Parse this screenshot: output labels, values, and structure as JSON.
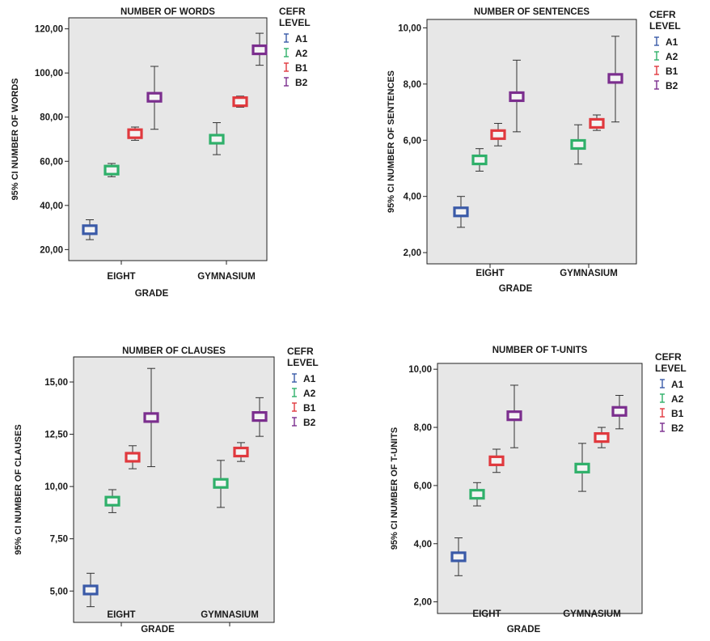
{
  "legend": {
    "title_line1": "CEFR",
    "title_line2": "LEVEL",
    "entries": [
      {
        "label": "A1",
        "color": "#3a5aa8"
      },
      {
        "label": "A2",
        "color": "#2fb06a"
      },
      {
        "label": "B1",
        "color": "#e0393e"
      },
      {
        "label": "B2",
        "color": "#7b2e8e"
      }
    ]
  },
  "chart_data": [
    {
      "type": "errorbar",
      "title": "NUMBER OF WORDS",
      "xlabel": "GRADE",
      "ylabel": "95% CI NUMBER OF WORDS",
      "categories": [
        "EIGHT",
        "GYMNASIUM"
      ],
      "ylim": [
        15,
        125
      ],
      "yticks": [
        "20,00",
        "40,00",
        "60,00",
        "80,00",
        "100,00",
        "120,00"
      ],
      "ytick_values": [
        20,
        40,
        60,
        80,
        100,
        120
      ],
      "series": [
        {
          "name": "A1",
          "means": [
            29,
            null
          ],
          "lower": [
            24.5,
            null
          ],
          "upper": [
            33.5,
            null
          ]
        },
        {
          "name": "A2",
          "means": [
            56,
            70
          ],
          "lower": [
            53,
            63
          ],
          "upper": [
            59,
            77.5
          ]
        },
        {
          "name": "B1",
          "means": [
            72.5,
            87
          ],
          "lower": [
            69.5,
            84.5
          ],
          "upper": [
            75.5,
            89.5
          ]
        },
        {
          "name": "B2",
          "means": [
            89,
            110.5
          ],
          "lower": [
            74.5,
            103.5
          ],
          "upper": [
            103,
            118
          ]
        }
      ]
    },
    {
      "type": "errorbar",
      "title": "NUMBER OF SENTENCES",
      "xlabel": "GRADE",
      "ylabel": "95% CI NUMBER OF SENTENCES",
      "categories": [
        "EIGHT",
        "GYMNASIUM"
      ],
      "ylim": [
        1.6,
        10.3
      ],
      "yticks": [
        "2,00",
        "4,00",
        "6,00",
        "8,00",
        "10,00"
      ],
      "ytick_values": [
        2,
        4,
        6,
        8,
        10
      ],
      "series": [
        {
          "name": "A1",
          "means": [
            3.45,
            null
          ],
          "lower": [
            2.9,
            null
          ],
          "upper": [
            4.0,
            null
          ]
        },
        {
          "name": "A2",
          "means": [
            5.3,
            5.85
          ],
          "lower": [
            4.9,
            5.15
          ],
          "upper": [
            5.7,
            6.55
          ]
        },
        {
          "name": "B1",
          "means": [
            6.2,
            6.6
          ],
          "lower": [
            5.8,
            6.35
          ],
          "upper": [
            6.6,
            6.9
          ]
        },
        {
          "name": "B2",
          "means": [
            7.55,
            8.2
          ],
          "lower": [
            6.3,
            6.65
          ],
          "upper": [
            8.85,
            9.7
          ]
        }
      ]
    },
    {
      "type": "errorbar",
      "title": "NUMBER OF CLAUSES",
      "xlabel": "GRADE",
      "ylabel": "95% CI NUMBER OF CLAUSES",
      "categories": [
        "EIGHT",
        "GYMNASIUM"
      ],
      "ylim": [
        3.5,
        16.2
      ],
      "yticks": [
        "5,00",
        "7,50",
        "10,00",
        "12,50",
        "15,00"
      ],
      "ytick_values": [
        5,
        7.5,
        10,
        12.5,
        15
      ],
      "series": [
        {
          "name": "A1",
          "means": [
            5.05,
            null
          ],
          "lower": [
            4.25,
            null
          ],
          "upper": [
            5.85,
            null
          ]
        },
        {
          "name": "A2",
          "means": [
            9.3,
            10.15
          ],
          "lower": [
            8.75,
            9.0
          ],
          "upper": [
            9.85,
            11.25
          ]
        },
        {
          "name": "B1",
          "means": [
            11.4,
            11.65
          ],
          "lower": [
            10.85,
            11.2
          ],
          "upper": [
            11.95,
            12.1
          ]
        },
        {
          "name": "B2",
          "means": [
            13.3,
            13.35
          ],
          "lower": [
            10.95,
            12.4
          ],
          "upper": [
            15.65,
            14.25
          ]
        }
      ]
    },
    {
      "type": "errorbar",
      "title": "NUMBER OF T-UNITS",
      "xlabel": "GRADE",
      "ylabel": "95% CI NUMBER OF T-UNITS",
      "categories": [
        "EIGHT",
        "GYMNASIUM"
      ],
      "ylim": [
        1.6,
        10.2
      ],
      "yticks": [
        "2,00",
        "4,00",
        "6,00",
        "8,00",
        "10,00"
      ],
      "ytick_values": [
        2,
        4,
        6,
        8,
        10
      ],
      "series": [
        {
          "name": "A1",
          "means": [
            3.55,
            null
          ],
          "lower": [
            2.9,
            null
          ],
          "upper": [
            4.2,
            null
          ]
        },
        {
          "name": "A2",
          "means": [
            5.7,
            6.6
          ],
          "lower": [
            5.3,
            5.8
          ],
          "upper": [
            6.1,
            7.45
          ]
        },
        {
          "name": "B1",
          "means": [
            6.85,
            7.65
          ],
          "lower": [
            6.45,
            7.3
          ],
          "upper": [
            7.25,
            8.0
          ]
        },
        {
          "name": "B2",
          "means": [
            8.4,
            8.55
          ],
          "lower": [
            7.3,
            7.95
          ],
          "upper": [
            9.45,
            9.1
          ]
        }
      ]
    }
  ]
}
